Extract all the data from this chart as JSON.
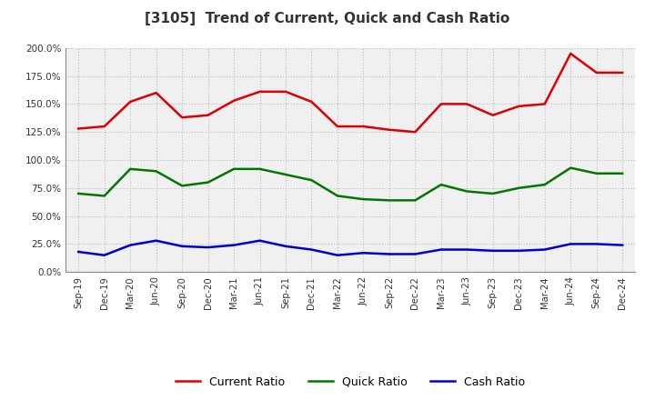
{
  "title": "[3105]  Trend of Current, Quick and Cash Ratio",
  "x_labels": [
    "Sep-19",
    "Dec-19",
    "Mar-20",
    "Jun-20",
    "Sep-20",
    "Dec-20",
    "Mar-21",
    "Jun-21",
    "Sep-21",
    "Dec-21",
    "Mar-22",
    "Jun-22",
    "Sep-22",
    "Dec-22",
    "Mar-23",
    "Jun-23",
    "Sep-23",
    "Dec-23",
    "Mar-24",
    "Jun-24",
    "Sep-24",
    "Dec-24"
  ],
  "current_ratio": [
    128,
    130,
    152,
    160,
    138,
    140,
    153,
    161,
    161,
    152,
    130,
    130,
    127,
    125,
    150,
    150,
    140,
    148,
    150,
    195,
    178,
    178
  ],
  "quick_ratio": [
    70,
    68,
    92,
    90,
    77,
    80,
    92,
    92,
    87,
    82,
    68,
    65,
    64,
    64,
    78,
    72,
    70,
    75,
    78,
    93,
    88,
    88
  ],
  "cash_ratio": [
    18,
    15,
    24,
    28,
    23,
    22,
    24,
    28,
    23,
    20,
    15,
    17,
    16,
    16,
    20,
    20,
    19,
    19,
    20,
    25,
    25,
    24
  ],
  "current_color": "#DD0000",
  "quick_color": "#007700",
  "cash_color": "#0000CC",
  "ylim": [
    0,
    200
  ],
  "yticks": [
    0,
    25,
    50,
    75,
    100,
    125,
    150,
    175,
    200
  ],
  "background_color": "#ffffff",
  "plot_bg_color": "#f0f0f0",
  "grid_color": "#bbbbbb",
  "title_color": "#333333"
}
